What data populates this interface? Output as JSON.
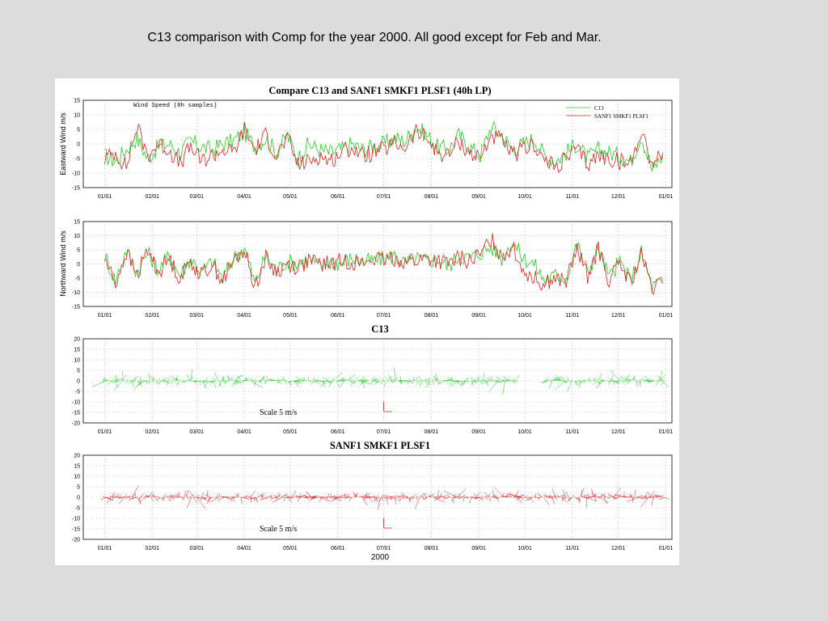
{
  "slide": {
    "caption": "C13 comparison with Comp for the year 2000. All good except for Feb and Mar."
  },
  "colors": {
    "c13": "#22cc22",
    "sanf1": "#e02020",
    "grid": "#999999",
    "background": "#dcdcdc"
  },
  "chart_data": [
    {
      "type": "line",
      "title": "Compare C13 and SANF1 SMKF1 PLSF1 (40h LP)",
      "annotation": "Wind Speed (8h samples)",
      "ylabel": "Eastward Wind m/s",
      "xlabel": "",
      "ylim": [
        -15,
        15
      ],
      "yticks": [
        -15,
        -10,
        -5,
        0,
        5,
        10,
        15
      ],
      "xlim": [
        -14,
        370
      ],
      "categories": [
        "01/01",
        "02/01",
        "03/01",
        "04/01",
        "05/01",
        "06/01",
        "07/01",
        "08/01",
        "09/01",
        "10/01",
        "11/01",
        "12/01",
        "01/01"
      ],
      "x": [
        0,
        31,
        60,
        91,
        121,
        152,
        182,
        213,
        244,
        274,
        305,
        335,
        366
      ],
      "grid": true,
      "legend_position": "top-right",
      "series": [
        {
          "name": "C13",
          "color": "#22cc22",
          "x": [
            0,
            7,
            14,
            21,
            28,
            35,
            42,
            49,
            56,
            63,
            70,
            77,
            84,
            91,
            98,
            105,
            112,
            119,
            126,
            133,
            140,
            147,
            154,
            161,
            168,
            175,
            182,
            189,
            196,
            203,
            210,
            217,
            224,
            231,
            238,
            245,
            252,
            259,
            266,
            273,
            280,
            287,
            294,
            301,
            308,
            315,
            322,
            329,
            336,
            343,
            350,
            357,
            364
          ],
          "values": [
            -4,
            -6,
            -2,
            2,
            -5,
            -1,
            0,
            -3,
            1,
            -1,
            -2,
            0,
            1,
            4,
            -1,
            2,
            -3,
            3,
            -5,
            0,
            -2,
            -3,
            -2,
            0,
            -2,
            -1,
            0,
            2,
            1,
            6,
            3,
            -1,
            -2,
            3,
            -1,
            -4,
            6,
            3,
            -2,
            0,
            2,
            -4,
            -6,
            -3,
            0,
            -5,
            -2,
            -3,
            -4,
            -6,
            3,
            -9,
            -4
          ]
        },
        {
          "name": "SANF1 SMKF1 PLSF1",
          "color": "#e02020",
          "x": [
            0,
            7,
            14,
            21,
            28,
            35,
            42,
            49,
            56,
            63,
            70,
            77,
            84,
            91,
            98,
            105,
            112,
            119,
            126,
            133,
            140,
            147,
            154,
            161,
            168,
            175,
            182,
            189,
            196,
            203,
            210,
            217,
            224,
            231,
            238,
            245,
            252,
            259,
            266,
            273,
            280,
            287,
            294,
            301,
            308,
            315,
            322,
            329,
            336,
            343,
            350,
            357,
            364
          ],
          "values": [
            -5,
            -3,
            -8,
            6,
            -4,
            0,
            -2,
            -7,
            -1,
            -6,
            -4,
            -2,
            -3,
            5,
            -2,
            3,
            -4,
            2,
            -7,
            -6,
            -4,
            -6,
            -3,
            -1,
            -4,
            -3,
            -2,
            0,
            -1,
            4,
            2,
            -3,
            -4,
            1,
            -3,
            -5,
            3,
            1,
            -4,
            -2,
            0,
            -6,
            -8,
            -5,
            -2,
            -7,
            -4,
            -5,
            -6,
            -7,
            5,
            -7,
            -3
          ]
        }
      ]
    },
    {
      "type": "line",
      "title": "",
      "ylabel": "Northward Wind m/s",
      "xlabel": "",
      "ylim": [
        -15,
        15
      ],
      "yticks": [
        -15,
        -10,
        -5,
        0,
        5,
        10,
        15
      ],
      "xlim": [
        -14,
        370
      ],
      "categories": [
        "01/01",
        "02/01",
        "03/01",
        "04/01",
        "05/01",
        "06/01",
        "07/01",
        "08/01",
        "09/01",
        "10/01",
        "11/01",
        "12/01",
        "01/01"
      ],
      "x": [
        0,
        31,
        60,
        91,
        121,
        152,
        182,
        213,
        244,
        274,
        305,
        335,
        366
      ],
      "grid": true,
      "series": [
        {
          "name": "C13",
          "color": "#22cc22",
          "x": [
            0,
            7,
            14,
            21,
            28,
            35,
            42,
            49,
            56,
            63,
            70,
            77,
            84,
            91,
            98,
            105,
            112,
            119,
            126,
            133,
            140,
            147,
            154,
            161,
            168,
            175,
            182,
            189,
            196,
            203,
            210,
            217,
            224,
            231,
            238,
            245,
            252,
            259,
            266,
            273,
            280,
            287,
            294,
            301,
            308,
            315,
            322,
            329,
            336,
            343,
            350,
            357,
            364
          ],
          "values": [
            3,
            -6,
            5,
            -3,
            4,
            -2,
            3,
            -4,
            2,
            -3,
            1,
            -5,
            2,
            6,
            -7,
            3,
            -2,
            1,
            0,
            2,
            -1,
            1,
            0,
            2,
            1,
            1,
            2,
            3,
            0,
            2,
            1,
            2,
            -1,
            3,
            2,
            4,
            6,
            2,
            8,
            2,
            0,
            -6,
            -4,
            -5,
            7,
            -3,
            6,
            -5,
            1,
            -6,
            4,
            -8,
            -6
          ]
        },
        {
          "name": "SANF1 SMKF1 PLSF1",
          "color": "#e02020",
          "x": [
            0,
            7,
            14,
            21,
            28,
            35,
            42,
            49,
            56,
            63,
            70,
            77,
            84,
            91,
            98,
            105,
            112,
            119,
            126,
            133,
            140,
            147,
            154,
            161,
            168,
            175,
            182,
            189,
            196,
            203,
            210,
            217,
            224,
            231,
            238,
            245,
            252,
            259,
            266,
            273,
            280,
            287,
            294,
            301,
            308,
            315,
            322,
            329,
            336,
            343,
            350,
            357,
            364
          ],
          "values": [
            2,
            -7,
            4,
            -4,
            5,
            -3,
            2,
            -5,
            1,
            -4,
            0,
            -6,
            1,
            5,
            -8,
            2,
            -3,
            0,
            -1,
            1,
            0,
            0,
            1,
            1,
            0,
            2,
            1,
            2,
            1,
            1,
            2,
            1,
            0,
            2,
            1,
            3,
            9,
            3,
            6,
            -2,
            -5,
            -7,
            -5,
            -6,
            5,
            -4,
            5,
            -6,
            0,
            -7,
            3,
            -9,
            -7
          ]
        }
      ]
    },
    {
      "type": "vector",
      "title": "C13",
      "ylabel": "",
      "ylim": [
        -20,
        20
      ],
      "yticks": [
        -20,
        -15,
        -10,
        -5,
        0,
        5,
        10,
        15,
        20
      ],
      "xlim": [
        -14,
        370
      ],
      "categories": [
        "01/01",
        "02/01",
        "03/01",
        "04/01",
        "05/01",
        "06/01",
        "07/01",
        "08/01",
        "09/01",
        "10/01",
        "11/01",
        "12/01",
        "01/01"
      ],
      "x": [
        0,
        31,
        60,
        91,
        121,
        152,
        182,
        213,
        244,
        274,
        305,
        335,
        366
      ],
      "scale_label": "Scale 5 m/s",
      "color": "#22cc22",
      "gap": [
        270,
        286
      ],
      "grid": true
    },
    {
      "type": "vector",
      "title": "SANF1 SMKF1 PLSF1",
      "ylabel": "",
      "ylim": [
        -20,
        20
      ],
      "yticks": [
        -20,
        -15,
        -10,
        -5,
        0,
        5,
        10,
        15,
        20
      ],
      "xlim": [
        -14,
        370
      ],
      "categories": [
        "01/01",
        "02/01",
        "03/01",
        "04/01",
        "05/01",
        "06/01",
        "07/01",
        "08/01",
        "09/01",
        "10/01",
        "11/01",
        "12/01",
        "01/01"
      ],
      "x": [
        0,
        31,
        60,
        91,
        121,
        152,
        182,
        213,
        244,
        274,
        305,
        335,
        366
      ],
      "scale_label": "Scale 5 m/s",
      "xlabel": "2000",
      "color": "#e02020",
      "gap": [],
      "grid": true
    }
  ]
}
